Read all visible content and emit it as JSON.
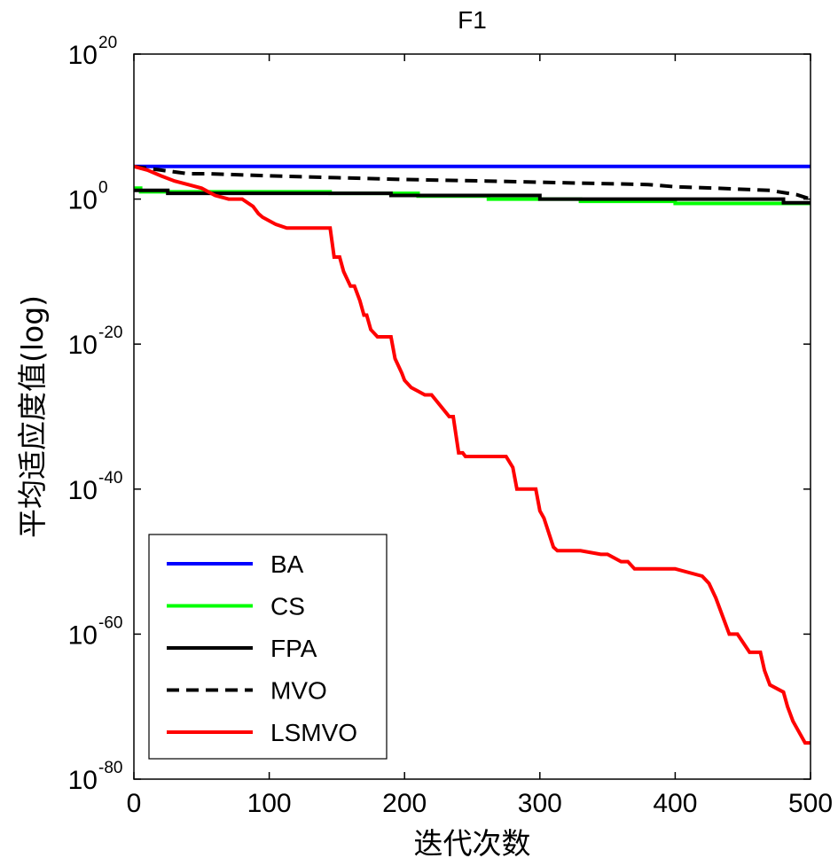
{
  "chart_data": {
    "type": "line",
    "title": "F1",
    "xlabel": "迭代次数",
    "ylabel": "平均适应度值(log)",
    "xlim": [
      0,
      500
    ],
    "ylim_exponent": [
      -80,
      20
    ],
    "y_scale": "log",
    "x_ticks": [
      "0",
      "100",
      "200",
      "300",
      "400",
      "500"
    ],
    "y_ticks": [
      {
        "base": "10",
        "exp": "20"
      },
      {
        "base": "10",
        "exp": "0"
      },
      {
        "base": "10",
        "exp": "-20"
      },
      {
        "base": "10",
        "exp": "-40"
      },
      {
        "base": "10",
        "exp": "-60"
      },
      {
        "base": "10",
        "exp": "-80"
      }
    ],
    "grid": false,
    "legend_position": "bottom-left",
    "series": [
      {
        "name": "BA",
        "color": "#0000ff",
        "style": "solid",
        "x": [
          0,
          500
        ],
        "log10_y": [
          4.5,
          4.5
        ]
      },
      {
        "name": "CS",
        "color": "#00ff00",
        "style": "solid",
        "x": [
          0,
          5,
          5,
          145,
          145,
          210,
          210,
          262,
          262,
          330,
          330,
          400,
          400,
          500
        ],
        "log10_y": [
          1.5,
          1.5,
          1.0,
          1.0,
          0.8,
          0.8,
          0.4,
          0.4,
          0.0,
          0.0,
          -0.3,
          -0.3,
          -0.6,
          -0.6
        ]
      },
      {
        "name": "FPA",
        "color": "#000000",
        "style": "solid",
        "x": [
          0,
          25,
          25,
          190,
          190,
          300,
          300,
          480,
          480,
          500
        ],
        "log10_y": [
          1.2,
          1.2,
          0.8,
          0.8,
          0.5,
          0.5,
          0.0,
          0.0,
          -0.5,
          -0.5
        ]
      },
      {
        "name": "MVO",
        "color": "#000000",
        "style": "dashed",
        "x": [
          0,
          20,
          40,
          55,
          100,
          200,
          260,
          330,
          380,
          400,
          430,
          470,
          490,
          500
        ],
        "log10_y": [
          4.5,
          4.0,
          3.5,
          3.5,
          3.2,
          2.7,
          2.5,
          2.2,
          2.0,
          1.7,
          1.5,
          1.2,
          0.6,
          0.0
        ]
      },
      {
        "name": "LSMVO",
        "color": "#ff0000",
        "style": "solid",
        "x": [
          0,
          10,
          20,
          30,
          40,
          50,
          60,
          70,
          80,
          88,
          92,
          95,
          100,
          105,
          113,
          115,
          130,
          145,
          148,
          152,
          155,
          160,
          163,
          167,
          170,
          172,
          175,
          180,
          190,
          193,
          198,
          200,
          205,
          210,
          215,
          220,
          233,
          236,
          240,
          243,
          245,
          260,
          275,
          280,
          283,
          297,
          300,
          303,
          310,
          313,
          330,
          345,
          350,
          360,
          365,
          370,
          385,
          400,
          420,
          425,
          430,
          436,
          440,
          446,
          455,
          463,
          466,
          470,
          480,
          483,
          487,
          490,
          496,
          500
        ],
        "log10_y": [
          4.5,
          4.0,
          3.2,
          2.5,
          2.0,
          1.5,
          0.5,
          0.0,
          0.0,
          -1.0,
          -2.0,
          -2.5,
          -3.0,
          -3.5,
          -4.0,
          -4.0,
          -4.0,
          -4.0,
          -8.0,
          -8.0,
          -10.0,
          -12.0,
          -12.0,
          -14.0,
          -16.0,
          -16.0,
          -18.0,
          -19.0,
          -19.0,
          -22.0,
          -24.0,
          -25.0,
          -26.0,
          -26.5,
          -27.0,
          -27.0,
          -30.0,
          -30.0,
          -35.0,
          -35.0,
          -35.5,
          -35.5,
          -35.5,
          -37.0,
          -40.0,
          -40.0,
          -43.0,
          -44.0,
          -48.0,
          -48.5,
          -48.5,
          -49.0,
          -49.0,
          -50.0,
          -50.0,
          -51.0,
          -51.0,
          -51.0,
          -52.0,
          -53.0,
          -55.0,
          -58.0,
          -60.0,
          -60.0,
          -62.5,
          -62.5,
          -65.0,
          -67.0,
          -68.0,
          -70.0,
          -72.0,
          -73.0,
          -75.0,
          -75.0
        ]
      }
    ]
  }
}
